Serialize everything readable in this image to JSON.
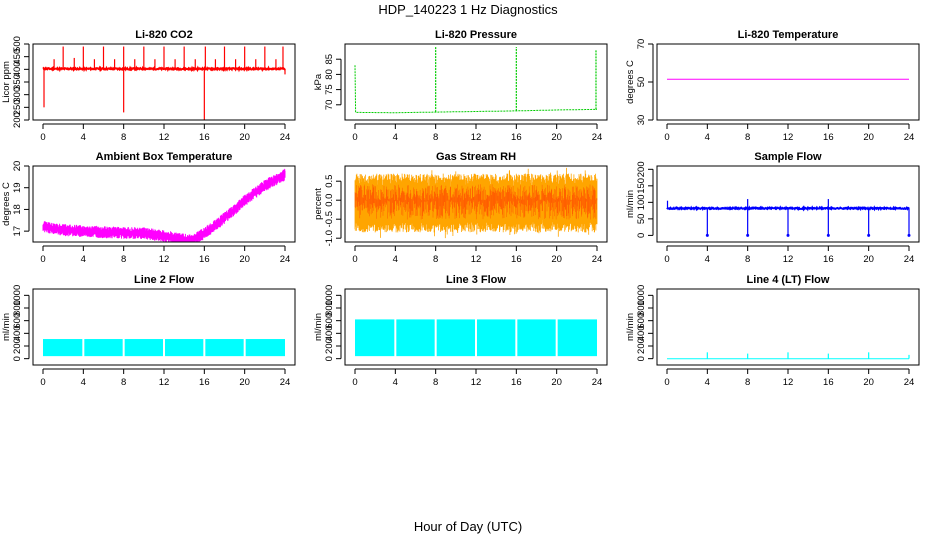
{
  "figure": {
    "title": "HDP_140223  1 Hz Diagnostics",
    "xlabel": "Hour of Day (UTC)"
  },
  "chart_data": [
    {
      "type": "line",
      "title": "Li-820 CO2",
      "ylabel": "Licor ppm",
      "color": "#ff0000",
      "xlim": [
        0,
        24
      ],
      "xticks": [
        0,
        4,
        8,
        12,
        16,
        20,
        24
      ],
      "ylim": [
        200,
        500
      ],
      "yticks": [
        200,
        250,
        300,
        350,
        400,
        450,
        500
      ],
      "series": [
        {
          "baseline": 402,
          "noise": 6,
          "spikes": [
            {
              "x": 0.1,
              "y": 250
            },
            {
              "x": 1.1,
              "y": 440
            },
            {
              "x": 2.0,
              "y": 490
            },
            {
              "x": 3.1,
              "y": 445
            },
            {
              "x": 4.0,
              "y": 490
            },
            {
              "x": 5.1,
              "y": 440
            },
            {
              "x": 6.0,
              "y": 490
            },
            {
              "x": 7.1,
              "y": 440
            },
            {
              "x": 8.0,
              "y": 230
            },
            {
              "x": 8.0,
              "y": 490
            },
            {
              "x": 9.1,
              "y": 440
            },
            {
              "x": 10.0,
              "y": 490
            },
            {
              "x": 11.1,
              "y": 440
            },
            {
              "x": 12.0,
              "y": 490
            },
            {
              "x": 13.1,
              "y": 440
            },
            {
              "x": 14.0,
              "y": 490
            },
            {
              "x": 15.1,
              "y": 440
            },
            {
              "x": 16.0,
              "y": 200
            },
            {
              "x": 16.1,
              "y": 490
            },
            {
              "x": 17.1,
              "y": 440
            },
            {
              "x": 18.0,
              "y": 490
            },
            {
              "x": 19.1,
              "y": 440
            },
            {
              "x": 20.0,
              "y": 490
            },
            {
              "x": 21.1,
              "y": 440
            },
            {
              "x": 22.0,
              "y": 490
            },
            {
              "x": 23.1,
              "y": 440
            },
            {
              "x": 23.8,
              "y": 490
            },
            {
              "x": 24.0,
              "y": 380
            }
          ]
        }
      ]
    },
    {
      "type": "line",
      "title": "Li-820 Pressure",
      "ylabel": "kPa",
      "color": "#00cc00",
      "xlim": [
        0,
        24
      ],
      "xticks": [
        0,
        4,
        8,
        12,
        16,
        20,
        24
      ],
      "ylim": [
        65,
        90
      ],
      "yticks": [
        70,
        75,
        80,
        85
      ],
      "series": [
        {
          "points": [
            [
              0,
              83
            ],
            [
              0.05,
              67.5
            ],
            [
              4,
              67.4
            ],
            [
              8,
              67.6
            ],
            [
              12,
              67.8
            ],
            [
              16,
              68.0
            ],
            [
              20,
              68.3
            ],
            [
              24,
              68.5
            ]
          ],
          "spikes": [
            {
              "x": 8.0,
              "y": 89
            },
            {
              "x": 16.0,
              "y": 89
            },
            {
              "x": 23.9,
              "y": 88
            }
          ]
        }
      ]
    },
    {
      "type": "line",
      "title": "Li-820 Temperature",
      "ylabel": "degrees C",
      "color": "#ff00ff",
      "xlim": [
        0,
        24
      ],
      "xticks": [
        0,
        4,
        8,
        12,
        16,
        20,
        24
      ],
      "ylim": [
        30,
        70
      ],
      "yticks": [
        30,
        50,
        70
      ],
      "series": [
        {
          "points": [
            [
              0,
              51.5
            ],
            [
              24,
              51.5
            ]
          ]
        }
      ]
    },
    {
      "type": "line",
      "title": "Ambient Box Temperature",
      "ylabel": "degrees C",
      "color": "#ff00ff",
      "xlim": [
        0,
        24
      ],
      "xticks": [
        0,
        4,
        8,
        12,
        16,
        20,
        24
      ],
      "ylim": [
        16.5,
        20
      ],
      "yticks": [
        17,
        18,
        19,
        20
      ],
      "series": [
        {
          "band": 0.35,
          "points": [
            [
              0,
              17.2
            ],
            [
              2,
              17.05
            ],
            [
              6,
              16.95
            ],
            [
              10,
              16.9
            ],
            [
              13,
              16.7
            ],
            [
              14.8,
              16.55
            ],
            [
              16,
              16.9
            ],
            [
              18,
              17.6
            ],
            [
              20,
              18.4
            ],
            [
              22,
              19.1
            ],
            [
              24,
              19.6
            ]
          ]
        }
      ]
    },
    {
      "type": "line",
      "title": "Gas Stream RH",
      "ylabel": "percent",
      "color": "#ff0000",
      "secondary_color": "#ffa500",
      "xlim": [
        0,
        24
      ],
      "xticks": [
        0,
        4,
        8,
        12,
        16,
        20,
        24
      ],
      "ylim": [
        -1.1,
        0.9
      ],
      "yticks": [
        -1.0,
        -0.5,
        0.0,
        0.5
      ],
      "series": [
        {
          "center": 0.0,
          "lower": -0.85,
          "upper": 0.7
        }
      ]
    },
    {
      "type": "line",
      "title": "Sample Flow",
      "ylabel": "ml/min",
      "color": "#0000ff",
      "xlim": [
        0,
        24
      ],
      "xticks": [
        0,
        4,
        8,
        12,
        16,
        20,
        24
      ],
      "ylim": [
        -20,
        210
      ],
      "yticks": [
        0,
        50,
        100,
        150,
        200
      ],
      "series": [
        {
          "baseline": 82,
          "noise": 4,
          "spikes": [
            {
              "x": 0.05,
              "y": 105
            },
            {
              "x": 4.0,
              "y": 0
            },
            {
              "x": 8.0,
              "y": 110
            },
            {
              "x": 8.0,
              "y": 0
            },
            {
              "x": 12.0,
              "y": 0
            },
            {
              "x": 16.0,
              "y": 110
            },
            {
              "x": 16.0,
              "y": 0
            },
            {
              "x": 20.0,
              "y": 0
            },
            {
              "x": 24.0,
              "y": 0
            }
          ]
        }
      ]
    },
    {
      "type": "area",
      "title": "Line 2 Flow",
      "ylabel": "ml/min",
      "color": "#00ffff",
      "xlim": [
        0,
        24
      ],
      "xticks": [
        0,
        4,
        8,
        12,
        16,
        20,
        24
      ],
      "ylim": [
        -100,
        1100
      ],
      "yticks": [
        0,
        200,
        400,
        600,
        800,
        1000
      ],
      "series": [
        {
          "lower": 40,
          "upper": 310,
          "gaps": [
            4,
            8,
            12,
            16,
            20
          ]
        }
      ]
    },
    {
      "type": "area",
      "title": "Line 3 Flow",
      "ylabel": "ml/min",
      "color": "#00ffff",
      "xlim": [
        0,
        24
      ],
      "xticks": [
        0,
        4,
        8,
        12,
        16,
        20,
        24
      ],
      "ylim": [
        -100,
        1100
      ],
      "yticks": [
        0,
        200,
        400,
        600,
        800,
        1000
      ],
      "series": [
        {
          "lower": 40,
          "upper": 620,
          "gaps": [
            4,
            8,
            12,
            16,
            20
          ]
        }
      ]
    },
    {
      "type": "line",
      "title": "Line 4 (LT) Flow",
      "ylabel": "ml/min",
      "color": "#00ffff",
      "xlim": [
        0,
        24
      ],
      "xticks": [
        0,
        4,
        8,
        12,
        16,
        20,
        24
      ],
      "ylim": [
        -100,
        1100
      ],
      "yticks": [
        0,
        200,
        400,
        600,
        800,
        1000
      ],
      "series": [
        {
          "baseline": 0,
          "spikes": [
            {
              "x": 4.0,
              "y": 100
            },
            {
              "x": 8.0,
              "y": 80
            },
            {
              "x": 12.0,
              "y": 100
            },
            {
              "x": 16.0,
              "y": 80
            },
            {
              "x": 20.0,
              "y": 100
            },
            {
              "x": 24.0,
              "y": 60
            }
          ]
        }
      ]
    }
  ]
}
